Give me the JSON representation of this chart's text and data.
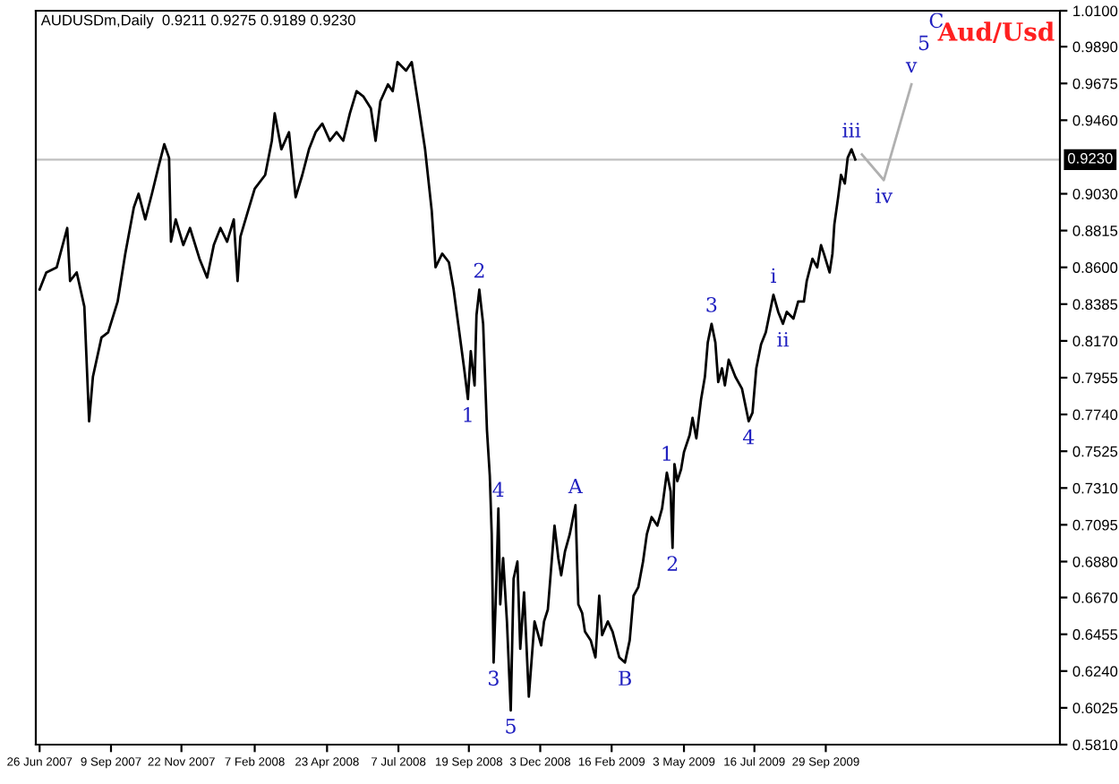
{
  "chart_data": {
    "type": "line",
    "title": "AUDUSDm,Daily  0.9211 0.9275 0.9189 0.9230",
    "xlim": [
      "2007-06-22",
      "2010-06-02"
    ],
    "xticks": [
      {
        "value": "2007-06-26",
        "label": "26 Jun 2007"
      },
      {
        "value": "2007-09-09",
        "label": "9 Sep 2007"
      },
      {
        "value": "2007-11-22",
        "label": "22 Nov 2007"
      },
      {
        "value": "2008-02-07",
        "label": "7 Feb 2008"
      },
      {
        "value": "2008-04-23",
        "label": "23 Apr 2008"
      },
      {
        "value": "2008-07-07",
        "label": "7 Jul 2008"
      },
      {
        "value": "2008-09-19",
        "label": "19 Sep 2008"
      },
      {
        "value": "2008-12-03",
        "label": "3 Dec 2008"
      },
      {
        "value": "2009-02-16",
        "label": "16 Feb 2009"
      },
      {
        "value": "2009-05-03",
        "label": "3 May 2009"
      },
      {
        "value": "2009-07-16",
        "label": "16 Jul 2009"
      },
      {
        "value": "2009-09-29",
        "label": "29 Sep 2009"
      }
    ],
    "ylim": [
      0.581,
      1.01
    ],
    "yticks": [
      {
        "value": 1.01,
        "label": "1.0100"
      },
      {
        "value": 0.989,
        "label": "0.9890"
      },
      {
        "value": 0.9675,
        "label": "0.9675"
      },
      {
        "value": 0.946,
        "label": "0.9460"
      },
      {
        "value": 0.903,
        "label": "0.9030"
      },
      {
        "value": 0.8815,
        "label": "0.8815"
      },
      {
        "value": 0.86,
        "label": "0.8600"
      },
      {
        "value": 0.8385,
        "label": "0.8385"
      },
      {
        "value": 0.817,
        "label": "0.8170"
      },
      {
        "value": 0.7955,
        "label": "0.7955"
      },
      {
        "value": 0.774,
        "label": "0.7740"
      },
      {
        "value": 0.7525,
        "label": "0.7525"
      },
      {
        "value": 0.731,
        "label": "0.7310"
      },
      {
        "value": 0.7095,
        "label": "0.7095"
      },
      {
        "value": 0.688,
        "label": "0.6880"
      },
      {
        "value": 0.667,
        "label": "0.6670"
      },
      {
        "value": 0.6455,
        "label": "0.6455"
      },
      {
        "value": 0.624,
        "label": "0.6240"
      },
      {
        "value": 0.6025,
        "label": "0.6025"
      },
      {
        "value": 0.581,
        "label": "0.5810"
      }
    ],
    "grid": false,
    "legend": false,
    "ref_lines": [
      {
        "axis": "y",
        "value": 0.923,
        "label": "0.9230",
        "color": "#c0c0c0"
      }
    ],
    "series": [
      {
        "color": "#000000",
        "x": [
          "2007-06-26",
          "2007-07-03",
          "2007-07-14",
          "2007-07-25",
          "2007-07-28",
          "2007-08-04",
          "2007-08-12",
          "2007-08-17",
          "2007-08-21",
          "2007-08-30",
          "2007-09-06",
          "2007-09-16",
          "2007-09-24",
          "2007-10-03",
          "2007-10-08",
          "2007-10-15",
          "2007-10-22",
          "2007-10-29",
          "2007-11-04",
          "2007-11-09",
          "2007-11-11",
          "2007-11-16",
          "2007-11-24",
          "2007-12-01",
          "2007-12-11",
          "2007-12-19",
          "2007-12-26",
          "2008-01-02",
          "2008-01-09",
          "2008-01-16",
          "2008-01-20",
          "2008-01-23",
          "2008-01-31",
          "2008-02-07",
          "2008-02-18",
          "2008-02-25",
          "2008-02-28",
          "2008-03-06",
          "2008-03-14",
          "2008-03-21",
          "2008-03-28",
          "2008-04-04",
          "2008-04-11",
          "2008-04-18",
          "2008-04-26",
          "2008-05-03",
          "2008-05-10",
          "2008-05-17",
          "2008-05-24",
          "2008-05-31",
          "2008-06-08",
          "2008-06-13",
          "2008-06-18",
          "2008-06-26",
          "2008-07-01",
          "2008-07-06",
          "2008-07-15",
          "2008-07-21",
          "2008-07-28",
          "2008-08-04",
          "2008-08-11",
          "2008-08-15",
          "2008-08-22",
          "2008-08-29",
          "2008-09-03",
          "2008-09-09",
          "2008-09-14",
          "2008-09-18",
          "2008-09-21",
          "2008-09-25",
          "2008-09-27",
          "2008-09-30",
          "2008-10-04",
          "2008-10-08",
          "2008-10-11",
          "2008-10-13",
          "2008-10-15",
          "2008-10-18",
          "2008-10-20",
          "2008-10-22",
          "2008-10-25",
          "2008-10-29",
          "2008-11-02",
          "2008-11-05",
          "2008-11-09",
          "2008-11-12",
          "2008-11-16",
          "2008-11-21",
          "2008-11-27",
          "2008-12-04",
          "2008-12-07",
          "2008-12-11",
          "2008-12-18",
          "2008-12-22",
          "2008-12-25",
          "2008-12-29",
          "2009-01-03",
          "2009-01-09",
          "2009-01-12",
          "2009-01-16",
          "2009-01-19",
          "2009-01-25",
          "2009-01-30",
          "2009-02-03",
          "2009-02-06",
          "2009-02-12",
          "2009-02-17",
          "2009-02-24",
          "2009-03-02",
          "2009-03-07",
          "2009-03-11",
          "2009-03-16",
          "2009-03-21",
          "2009-03-25",
          "2009-03-30",
          "2009-04-05",
          "2009-04-10",
          "2009-04-15",
          "2009-04-19",
          "2009-04-21",
          "2009-04-23",
          "2009-04-26",
          "2009-04-30",
          "2009-05-03",
          "2009-05-09",
          "2009-05-12",
          "2009-05-16",
          "2009-05-21",
          "2009-05-25",
          "2009-05-28",
          "2009-06-01",
          "2009-06-05",
          "2009-06-08",
          "2009-06-12",
          "2009-06-15",
          "2009-06-19",
          "2009-06-26",
          "2009-07-03",
          "2009-07-10",
          "2009-07-14",
          "2009-07-18",
          "2009-07-23",
          "2009-07-28",
          "2009-08-05",
          "2009-08-10",
          "2009-08-15",
          "2009-08-19",
          "2009-08-26",
          "2009-08-31",
          "2009-09-06",
          "2009-09-09",
          "2009-09-15",
          "2009-09-20",
          "2009-09-24",
          "2009-09-27",
          "2009-10-03",
          "2009-10-06",
          "2009-10-08",
          "2009-10-12",
          "2009-10-15",
          "2009-10-19",
          "2009-10-22",
          "2009-10-26",
          "2009-10-30"
        ],
        "values": [
          0.847,
          0.857,
          0.86,
          0.883,
          0.852,
          0.857,
          0.837,
          0.77,
          0.796,
          0.819,
          0.822,
          0.84,
          0.868,
          0.895,
          0.903,
          0.888,
          0.903,
          0.919,
          0.932,
          0.924,
          0.875,
          0.888,
          0.873,
          0.883,
          0.865,
          0.854,
          0.873,
          0.883,
          0.875,
          0.888,
          0.852,
          0.878,
          0.893,
          0.906,
          0.914,
          0.934,
          0.95,
          0.929,
          0.939,
          0.901,
          0.914,
          0.929,
          0.939,
          0.944,
          0.934,
          0.939,
          0.934,
          0.95,
          0.963,
          0.96,
          0.953,
          0.934,
          0.957,
          0.967,
          0.963,
          0.98,
          0.975,
          0.98,
          0.955,
          0.929,
          0.893,
          0.86,
          0.868,
          0.863,
          0.847,
          0.822,
          0.801,
          0.783,
          0.811,
          0.791,
          0.832,
          0.847,
          0.827,
          0.765,
          0.738,
          0.704,
          0.629,
          0.678,
          0.719,
          0.663,
          0.69,
          0.653,
          0.601,
          0.678,
          0.688,
          0.637,
          0.67,
          0.609,
          0.653,
          0.639,
          0.653,
          0.66,
          0.709,
          0.69,
          0.68,
          0.694,
          0.704,
          0.721,
          0.663,
          0.658,
          0.647,
          0.642,
          0.632,
          0.668,
          0.645,
          0.653,
          0.647,
          0.632,
          0.629,
          0.642,
          0.668,
          0.673,
          0.688,
          0.704,
          0.714,
          0.709,
          0.719,
          0.74,
          0.729,
          0.696,
          0.745,
          0.735,
          0.742,
          0.752,
          0.762,
          0.772,
          0.76,
          0.783,
          0.796,
          0.816,
          0.827,
          0.816,
          0.793,
          0.801,
          0.791,
          0.806,
          0.796,
          0.789,
          0.77,
          0.775,
          0.801,
          0.815,
          0.822,
          0.844,
          0.834,
          0.827,
          0.834,
          0.83,
          0.84,
          0.84,
          0.852,
          0.865,
          0.86,
          0.873,
          0.868,
          0.857,
          0.868,
          0.885,
          0.901,
          0.914,
          0.909,
          0.924,
          0.929,
          0.923
        ]
      },
      {
        "color": "#b0b0b0",
        "x": [
          "2009-11-06",
          "2009-11-29",
          "2009-12-28"
        ],
        "values": [
          0.926,
          0.911,
          0.967
        ]
      }
    ],
    "annotations": [
      "Aud/Usd",
      {
        "text": "2",
        "x": "2008-09-30",
        "y": 0.847
      },
      {
        "text": "1",
        "x": "2008-09-18",
        "y": 0.783
      },
      {
        "text": "4",
        "x": "2008-10-20",
        "y": 0.719
      },
      {
        "text": "3",
        "x": "2008-10-15",
        "y": 0.629
      },
      {
        "text": "5",
        "x": "2008-11-02",
        "y": 0.601
      },
      {
        "text": "A",
        "x": "2009-01-09",
        "y": 0.721
      },
      {
        "text": "B",
        "x": "2009-03-02",
        "y": 0.629
      },
      {
        "text": "1",
        "x": "2009-04-15",
        "y": 0.74
      },
      {
        "text": "2",
        "x": "2009-04-21",
        "y": 0.696
      },
      {
        "text": "3",
        "x": "2009-06-01",
        "y": 0.827
      },
      {
        "text": "4",
        "x": "2009-07-10",
        "y": 0.77
      },
      {
        "text": "i",
        "x": "2009-08-05",
        "y": 0.844
      },
      {
        "text": "ii",
        "x": "2009-08-15",
        "y": 0.827
      },
      {
        "text": "iii",
        "x": "2009-10-26",
        "y": 0.929
      },
      {
        "text": "iv",
        "x": "2009-11-29",
        "y": 0.911
      },
      {
        "text": "v",
        "x": "2009-12-28",
        "y": 0.967
      },
      {
        "text": "5",
        "x": "2009-12-28",
        "y": 0.967
      },
      {
        "text": "C",
        "x": "2009-12-28",
        "y": 0.967
      }
    ]
  }
}
